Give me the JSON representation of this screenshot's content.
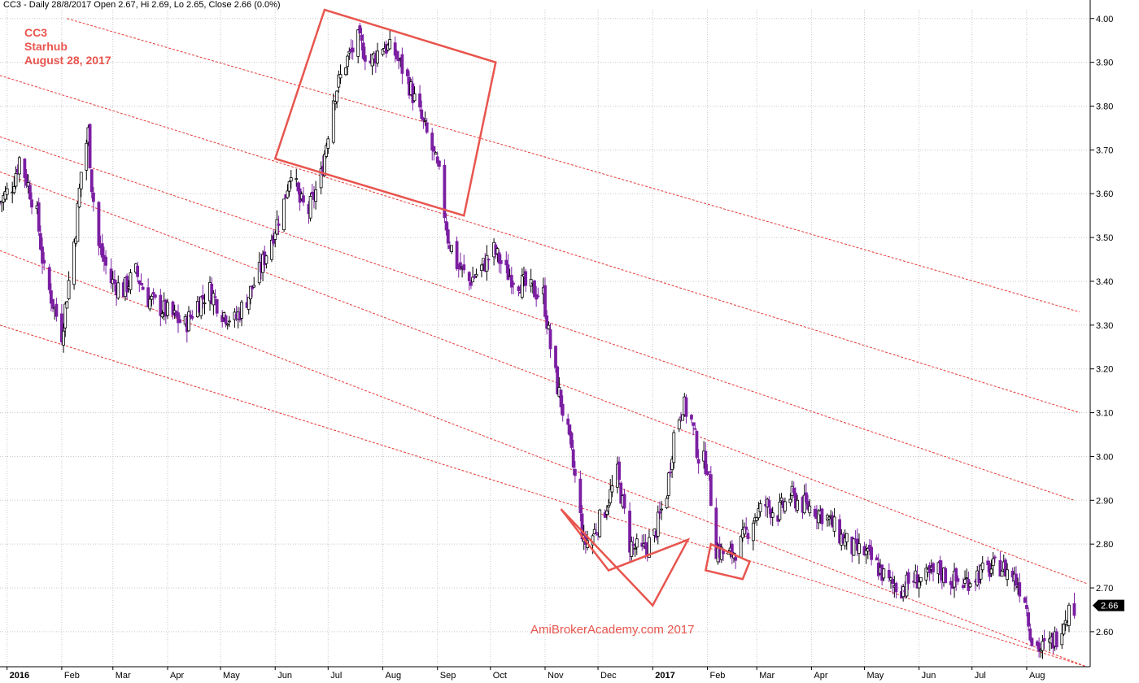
{
  "header": {
    "text": "CC3 - Daily 28/8/2017 Open 2.67, Hi 2.69, Lo 2.65, Close 2.66 (0.0%)"
  },
  "annotation": {
    "symbol": "CC3",
    "name": "Starhub",
    "date": "August 28, 2017"
  },
  "watermark": "AmiBrokerAcademy.com  2017",
  "colors": {
    "up_candle": "#000000",
    "down_candle": "#7b1fa2",
    "channel_line": "#e53935",
    "box": "#e8554e",
    "grid": "#c8c8c8",
    "last_price_badge": "#000000"
  },
  "chart_data": {
    "type": "candlestick",
    "title": "CC3",
    "ylim": [
      2.52,
      4.02
    ],
    "y_ticks": [
      "2.60",
      "2.70",
      "2.80",
      "2.90",
      "3.00",
      "3.10",
      "3.20",
      "3.30",
      "3.40",
      "3.50",
      "3.60",
      "3.70",
      "3.80",
      "3.90",
      "4.00"
    ],
    "x_tick_labels": [
      "2016",
      "Feb",
      "Mar",
      "Apr",
      "May",
      "Jun",
      "Jul",
      "Aug",
      "Sep",
      "Oct",
      "Nov",
      "Dec",
      "2017",
      "Feb",
      "Mar",
      "Apr",
      "May",
      "Jun",
      "Jul",
      "Aug"
    ],
    "x_tick_dates": [
      "2016-01-01",
      "2016-02-01",
      "2016-03-01",
      "2016-04-01",
      "2016-05-01",
      "2016-06-01",
      "2016-07-01",
      "2016-08-01",
      "2016-09-01",
      "2016-10-01",
      "2016-11-01",
      "2016-12-01",
      "2017-01-01",
      "2017-02-01",
      "2017-03-01",
      "2017-04-01",
      "2017-05-01",
      "2017-06-01",
      "2017-07-01",
      "2017-08-01"
    ],
    "bold_tick_labels": [
      "2016",
      "2017"
    ],
    "last_price": "2.66",
    "price_path": [
      [
        "2015-12-28",
        3.58
      ],
      [
        "2016-01-04",
        3.62
      ],
      [
        "2016-01-08",
        3.68
      ],
      [
        "2016-01-13",
        3.62
      ],
      [
        "2016-01-18",
        3.55
      ],
      [
        "2016-01-22",
        3.42
      ],
      [
        "2016-01-27",
        3.35
      ],
      [
        "2016-02-01",
        3.28
      ],
      [
        "2016-02-05",
        3.4
      ],
      [
        "2016-02-09",
        3.52
      ],
      [
        "2016-02-12",
        3.65
      ],
      [
        "2016-02-16",
        3.74
      ],
      [
        "2016-02-18",
        3.62
      ],
      [
        "2016-02-22",
        3.48
      ],
      [
        "2016-02-29",
        3.4
      ],
      [
        "2016-03-07",
        3.38
      ],
      [
        "2016-03-14",
        3.42
      ],
      [
        "2016-03-21",
        3.36
      ],
      [
        "2016-03-28",
        3.34
      ],
      [
        "2016-04-04",
        3.32
      ],
      [
        "2016-04-11",
        3.3
      ],
      [
        "2016-04-18",
        3.35
      ],
      [
        "2016-04-25",
        3.38
      ],
      [
        "2016-05-02",
        3.33
      ],
      [
        "2016-05-09",
        3.31
      ],
      [
        "2016-05-16",
        3.36
      ],
      [
        "2016-05-23",
        3.42
      ],
      [
        "2016-05-30",
        3.5
      ],
      [
        "2016-06-06",
        3.58
      ],
      [
        "2016-06-10",
        3.66
      ],
      [
        "2016-06-15",
        3.58
      ],
      [
        "2016-06-20",
        3.56
      ],
      [
        "2016-06-27",
        3.64
      ],
      [
        "2016-07-04",
        3.82
      ],
      [
        "2016-07-11",
        3.9
      ],
      [
        "2016-07-18",
        3.95
      ],
      [
        "2016-07-25",
        3.9
      ],
      [
        "2016-08-01",
        3.94
      ],
      [
        "2016-08-08",
        3.92
      ],
      [
        "2016-08-15",
        3.86
      ],
      [
        "2016-08-22",
        3.78
      ],
      [
        "2016-08-29",
        3.7
      ],
      [
        "2016-09-02",
        3.64
      ],
      [
        "2016-09-07",
        3.5
      ],
      [
        "2016-09-12",
        3.44
      ],
      [
        "2016-09-19",
        3.4
      ],
      [
        "2016-09-26",
        3.43
      ],
      [
        "2016-10-03",
        3.47
      ],
      [
        "2016-10-10",
        3.42
      ],
      [
        "2016-10-17",
        3.4
      ],
      [
        "2016-10-24",
        3.38
      ],
      [
        "2016-10-31",
        3.37
      ],
      [
        "2016-11-04",
        3.25
      ],
      [
        "2016-11-08",
        3.16
      ],
      [
        "2016-11-14",
        3.05
      ],
      [
        "2016-11-18",
        2.95
      ],
      [
        "2016-11-23",
        2.8
      ],
      [
        "2016-11-28",
        2.82
      ],
      [
        "2016-12-05",
        2.88
      ],
      [
        "2016-12-12",
        2.96
      ],
      [
        "2016-12-19",
        2.8
      ],
      [
        "2016-12-26",
        2.78
      ],
      [
        "2017-01-02",
        2.82
      ],
      [
        "2017-01-09",
        2.92
      ],
      [
        "2017-01-13",
        3.05
      ],
      [
        "2017-01-18",
        3.12
      ],
      [
        "2017-01-23",
        3.08
      ],
      [
        "2017-01-27",
        3.0
      ],
      [
        "2017-02-01",
        2.98
      ],
      [
        "2017-02-06",
        2.79
      ],
      [
        "2017-02-13",
        2.77
      ],
      [
        "2017-02-20",
        2.8
      ],
      [
        "2017-02-27",
        2.86
      ],
      [
        "2017-03-06",
        2.89
      ],
      [
        "2017-03-13",
        2.87
      ],
      [
        "2017-03-20",
        2.91
      ],
      [
        "2017-03-27",
        2.89
      ],
      [
        "2017-04-03",
        2.88
      ],
      [
        "2017-04-10",
        2.86
      ],
      [
        "2017-04-17",
        2.82
      ],
      [
        "2017-04-24",
        2.79
      ],
      [
        "2017-05-01",
        2.78
      ],
      [
        "2017-05-08",
        2.75
      ],
      [
        "2017-05-15",
        2.71
      ],
      [
        "2017-05-22",
        2.7
      ],
      [
        "2017-05-29",
        2.72
      ],
      [
        "2017-06-05",
        2.72
      ],
      [
        "2017-06-12",
        2.74
      ],
      [
        "2017-06-19",
        2.72
      ],
      [
        "2017-06-26",
        2.71
      ],
      [
        "2017-07-03",
        2.73
      ],
      [
        "2017-07-10",
        2.74
      ],
      [
        "2017-07-17",
        2.75
      ],
      [
        "2017-07-24",
        2.73
      ],
      [
        "2017-07-31",
        2.68
      ],
      [
        "2017-08-04",
        2.58
      ],
      [
        "2017-08-09",
        2.56
      ],
      [
        "2017-08-14",
        2.57
      ],
      [
        "2017-08-18",
        2.59
      ],
      [
        "2017-08-23",
        2.64
      ],
      [
        "2017-08-28",
        2.66
      ]
    ],
    "channel_lines": [
      [
        [
          "2016-02-04",
          4.0
        ],
        [
          "2017-08-31",
          3.33
        ]
      ],
      [
        [
          "2015-12-28",
          3.87
        ],
        [
          "2017-08-31",
          3.1
        ]
      ],
      [
        [
          "2015-12-28",
          3.73
        ],
        [
          "2017-08-28",
          2.9
        ]
      ],
      [
        [
          "2015-12-28",
          3.65
        ],
        [
          "2017-09-04",
          2.71
        ]
      ],
      [
        [
          "2015-12-28",
          3.47
        ],
        [
          "2017-09-04",
          2.52
        ]
      ],
      [
        [
          "2015-12-28",
          3.3
        ],
        [
          "2017-09-04",
          2.52
        ]
      ]
    ],
    "boxes": [
      [
        [
          "2016-06-01",
          3.68
        ],
        [
          "2016-06-29",
          4.02
        ],
        [
          "2016-10-04",
          3.9
        ],
        [
          "2016-09-16",
          3.55
        ]
      ],
      [
        [
          "2016-11-10",
          2.88
        ],
        [
          "2016-12-07",
          2.74
        ],
        [
          "2017-01-21",
          2.81
        ],
        [
          "2017-01-01",
          2.66
        ]
      ],
      [
        [
          "2017-02-03",
          2.8
        ],
        [
          "2017-02-25",
          2.76
        ],
        [
          "2017-02-21",
          2.72
        ],
        [
          "2017-01-31",
          2.74
        ]
      ]
    ],
    "grid": true,
    "y_axis_position": "right"
  }
}
